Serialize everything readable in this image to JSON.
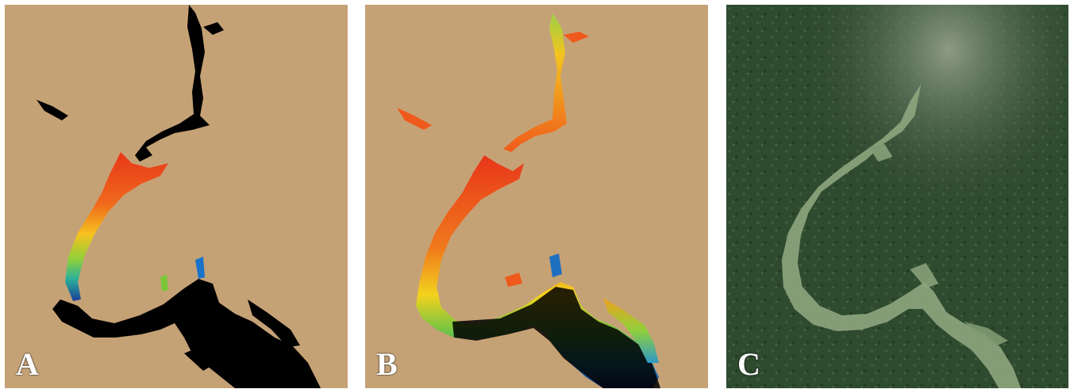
{
  "panels": [
    {
      "id": "A",
      "label": "A"
    },
    {
      "id": "B",
      "label": "B"
    },
    {
      "id": "C",
      "label": "C"
    }
  ],
  "colors": {
    "land": "#c5a276",
    "water_unclassified": "#000000",
    "high": "#ee3b1c",
    "mid_high": "#f6a11e",
    "mid": "#f2e21e",
    "mid_low": "#6cc534",
    "low": "#1f5fb8",
    "satellite_forest": "#2e4a2f",
    "satellite_water": "#8ea67e"
  }
}
